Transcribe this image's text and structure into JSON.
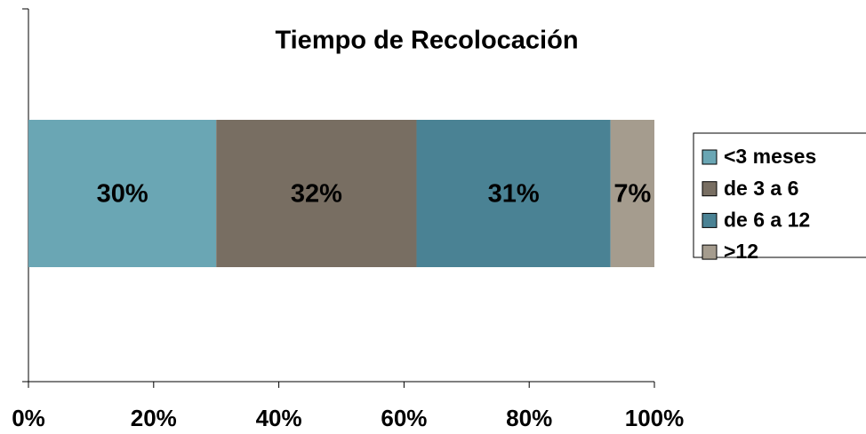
{
  "chart_data": {
    "type": "stacked_barh",
    "title": "Tiempo de Recolocación",
    "series": [
      {
        "name": "<3 meses",
        "color": "#6aa6b4",
        "values": [
          30
        ],
        "value_labels": [
          "30%"
        ]
      },
      {
        "name": "de 3 a 6",
        "color": "#786e62",
        "values": [
          32
        ],
        "value_labels": [
          "32%"
        ]
      },
      {
        "name": "de 6 a 12",
        "color": "#4a8294",
        "values": [
          31
        ],
        "value_labels": [
          "31%"
        ]
      },
      {
        "name": ">12",
        "color": "#a59c8e",
        "values": [
          7
        ],
        "value_labels": [
          "7%"
        ]
      }
    ],
    "xlim": [
      0,
      100
    ],
    "xticks": [
      {
        "value": 0,
        "label": "0%"
      },
      {
        "value": 20,
        "label": "20%"
      },
      {
        "value": 40,
        "label": "40%"
      },
      {
        "value": 60,
        "label": "60%"
      },
      {
        "value": 80,
        "label": "80%"
      },
      {
        "value": 100,
        "label": "100%"
      }
    ],
    "legend": "right"
  }
}
